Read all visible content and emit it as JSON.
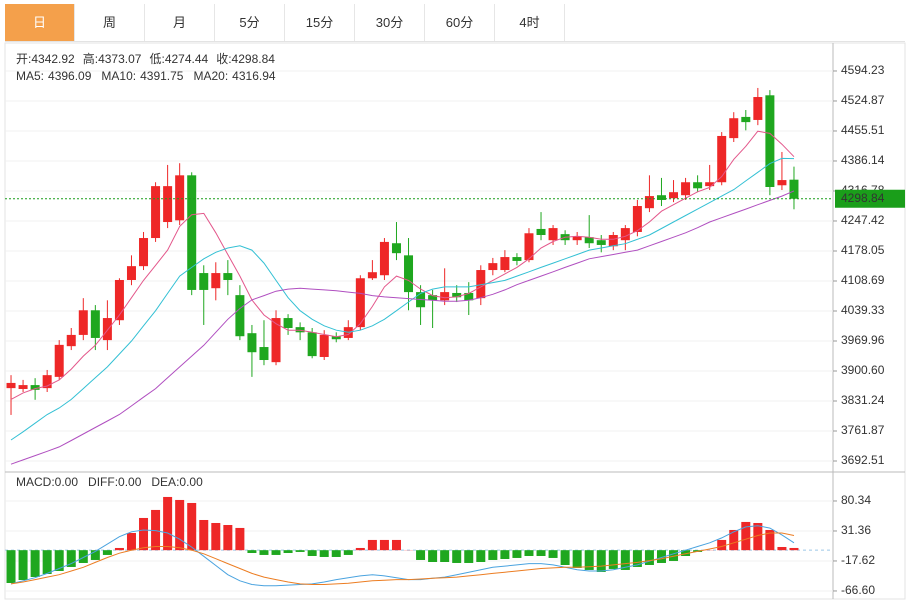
{
  "tabs": {
    "items": [
      "日",
      "周",
      "月",
      "5分",
      "15分",
      "30分",
      "60分",
      "4时"
    ],
    "selected": 0
  },
  "chart_data": [
    {
      "type": "candlestick",
      "open": [
        3861,
        3859,
        3868,
        3861,
        3887,
        3958,
        3984,
        4041,
        3972,
        4018,
        4111,
        4143,
        4208,
        4245,
        4249,
        4353,
        4127,
        4092,
        4127,
        4076,
        3988,
        3956,
        3921,
        4023,
        4002,
        3990,
        3933,
        3981,
        3977,
        4002,
        4115,
        4122,
        4196,
        4168,
        4083,
        4076,
        4064,
        4081,
        4081,
        4069,
        4134,
        4134,
        4164,
        4157,
        4229,
        4203,
        4217,
        4203,
        4210,
        4203,
        4189,
        4203,
        4222,
        4277,
        4307,
        4300,
        4307,
        4337,
        4328,
        4337,
        4439,
        4488,
        4481,
        4538,
        4330,
        4342.92
      ],
      "high": [
        3891,
        3880,
        3884,
        3903,
        3972,
        4000,
        4069,
        4053,
        4064,
        4115,
        4168,
        4222,
        4337,
        4377,
        4381,
        4360,
        4145,
        4152,
        4157,
        4099,
        4007,
        4018,
        4041,
        4032,
        4013,
        4000,
        3995,
        3990,
        4018,
        4122,
        4157,
        4208,
        4245,
        4208,
        4099,
        4088,
        4138,
        4099,
        4106,
        4145,
        4162,
        4180,
        4173,
        4231,
        4268,
        4238,
        4226,
        4222,
        4261,
        4215,
        4222,
        4238,
        4296,
        4353,
        4347,
        4342,
        4347,
        4353,
        4377,
        4453,
        4499,
        4504,
        4555,
        4550,
        4407,
        4373.07
      ],
      "low": [
        3799,
        3852,
        3834,
        3852,
        3880,
        3949,
        3972,
        3949,
        3949,
        4007,
        4099,
        4134,
        4199,
        4231,
        4238,
        4076,
        4007,
        4064,
        4076,
        3972,
        3887,
        3914,
        3914,
        3984,
        3972,
        3930,
        3926,
        3967,
        3972,
        3995,
        4111,
        4111,
        4157,
        4041,
        4007,
        4000,
        4053,
        4060,
        4030,
        4053,
        4122,
        4129,
        4145,
        4152,
        4203,
        4192,
        4192,
        4192,
        4185,
        4175,
        4180,
        4180,
        4212,
        4268,
        4282,
        4291,
        4296,
        4314,
        4319,
        4330,
        4430,
        4457,
        4469,
        4307,
        4319,
        4274.44
      ],
      "close": [
        3873,
        3868,
        3857,
        3891,
        3961,
        3984,
        4041,
        3977,
        4023,
        4111,
        4143,
        4208,
        4328,
        4328,
        4353,
        4088,
        4088,
        4127,
        4111,
        3981,
        3944,
        3926,
        4023,
        4000,
        3990,
        3935,
        3984,
        3974,
        4002,
        4115,
        4129,
        4199,
        4173,
        4083,
        4048,
        4064,
        4083,
        4071,
        4064,
        4134,
        4150,
        4164,
        4155,
        4219,
        4215,
        4231,
        4203,
        4212,
        4196,
        4192,
        4215,
        4231,
        4282,
        4305,
        4296,
        4314,
        4337,
        4323,
        4337,
        4444,
        4485,
        4476,
        4534,
        4326,
        4342,
        4298.84
      ],
      "up_color": "#ee2727",
      "down_color": "#1fa71f",
      "readout_color": "#1a9e1a",
      "ohlc_labels": [
        "开:",
        "高:",
        "低:",
        "收:"
      ],
      "lines": [
        {
          "name": "MA5:",
          "color": "#e3578b",
          "values": [
            3835,
            3850,
            3860,
            3866,
            3880,
            3905,
            3935,
            3960,
            3995,
            4030,
            4070,
            4110,
            4145,
            4180,
            4235,
            4262,
            4265,
            4220,
            4170,
            4120,
            4065,
            4030,
            4010,
            3995,
            3995,
            3990,
            3985,
            3980,
            3985,
            4010,
            4050,
            4095,
            4120,
            4110,
            4090,
            4075,
            4070,
            4072,
            4080,
            4095,
            4110,
            4125,
            4140,
            4160,
            4185,
            4200,
            4210,
            4212,
            4210,
            4205,
            4205,
            4212,
            4225,
            4245,
            4270,
            4285,
            4300,
            4315,
            4325,
            4350,
            4390,
            4420,
            4455,
            4450,
            4425,
            4396.09
          ]
        },
        {
          "name": "MA10:",
          "color": "#33c0d4",
          "values": [
            3741,
            3760,
            3780,
            3800,
            3815,
            3835,
            3860,
            3885,
            3910,
            3940,
            3970,
            4005,
            4040,
            4080,
            4120,
            4140,
            4160,
            4175,
            4185,
            4190,
            4180,
            4150,
            4110,
            4070,
            4040,
            4020,
            4005,
            3995,
            3990,
            3995,
            4005,
            4020,
            4040,
            4060,
            4080,
            4090,
            4095,
            4095,
            4095,
            4100,
            4105,
            4110,
            4120,
            4130,
            4140,
            4150,
            4160,
            4170,
            4180,
            4185,
            4190,
            4195,
            4205,
            4215,
            4230,
            4245,
            4260,
            4275,
            4290,
            4305,
            4320,
            4340,
            4360,
            4380,
            4392,
            4391.75
          ]
        },
        {
          "name": "MA20:",
          "color": "#b04fc0",
          "values": [
            3685,
            3695,
            3705,
            3715,
            3725,
            3740,
            3755,
            3770,
            3785,
            3800,
            3820,
            3840,
            3860,
            3885,
            3910,
            3935,
            3960,
            3990,
            4020,
            4045,
            4065,
            4075,
            4085,
            4090,
            4092,
            4090,
            4088,
            4086,
            4083,
            4080,
            4075,
            4072,
            4070,
            4068,
            4066,
            4064,
            4062,
            4062,
            4064,
            4070,
            4078,
            4088,
            4100,
            4110,
            4120,
            4130,
            4140,
            4150,
            4160,
            4165,
            4170,
            4175,
            4180,
            4190,
            4200,
            4210,
            4220,
            4232,
            4245,
            4255,
            4265,
            4275,
            4285,
            4295,
            4305,
            4316.94
          ]
        }
      ],
      "ylim": [
        3671.7,
        4656.6
      ],
      "yticks": [
        4594.23,
        4524.87,
        4455.51,
        4386.14,
        4316.78,
        4247.42,
        4178.05,
        4108.69,
        4039.33,
        3969.96,
        {
          "value": 3900.6,
          "label": "3900.60"
        },
        3831.24,
        3761.87,
        3692.51
      ],
      "grid": true
    },
    {
      "type": "macd",
      "series": [
        {
          "name": "MACD:",
          "type": "bar",
          "color": "#ee2727",
          "up_color": "#ee2727",
          "down_color": "#1fa71f",
          "readout": {
            "value": 0,
            "label": "0.00"
          },
          "values": [
            -53.6,
            -48.7,
            -43.8,
            -38.9,
            -34.0,
            -27.4,
            -20.9,
            -16.0,
            -7.8,
            3.6,
            28.1,
            52.6,
            65.7,
            86.9,
            82.0,
            77.1,
            49.3,
            44.4,
            41.1,
            36.3,
            -4.6,
            -7.8,
            -7.8,
            -4.6,
            -2.9,
            -9.5,
            -11.1,
            -11.1,
            -7.8,
            3.6,
            16.7,
            16.7,
            16.7,
            0.3,
            -16.0,
            -19.3,
            -19.3,
            -20.9,
            -20.9,
            -19.3,
            -16.0,
            -14.4,
            -12.7,
            -9.5,
            -9.5,
            -12.7,
            -24.2,
            -29.1,
            -32.3,
            -35.6,
            -30.7,
            -32.3,
            -27.4,
            -24.2,
            -20.9,
            -17.6,
            -9.5,
            -2.9,
            0.3,
            16.7,
            33.0,
            46.1,
            44.4,
            33.0,
            5.2,
            3.6
          ]
        },
        {
          "name": "DIFF:",
          "type": "line",
          "color": "#4aa3df",
          "readout": {
            "value": 0,
            "label": "0.00"
          },
          "values": [
            -55,
            -50,
            -45,
            -38,
            -30,
            -22,
            -12,
            -2,
            10,
            22,
            30,
            33,
            32,
            28,
            18,
            5,
            -10,
            -25,
            -40,
            -50,
            -56,
            -58,
            -58,
            -57,
            -56,
            -55,
            -52,
            -48,
            -45,
            -42,
            -40,
            -42,
            -45,
            -48,
            -48,
            -46,
            -44,
            -40,
            -36,
            -32,
            -28,
            -26,
            -24,
            -22,
            -22,
            -24,
            -28,
            -32,
            -34,
            -34,
            -32,
            -28,
            -24,
            -18,
            -12,
            -6,
            0,
            6,
            12,
            20,
            30,
            38,
            40,
            36,
            25,
            12
          ]
        },
        {
          "name": "DEA:",
          "type": "line",
          "color": "#ec7d22",
          "readout": {
            "value": 0,
            "label": "0.00"
          },
          "values": [
            -55,
            -52,
            -48,
            -44,
            -40,
            -34,
            -28,
            -20,
            -12,
            -5,
            0,
            4,
            6,
            6,
            4,
            0,
            -6,
            -14,
            -22,
            -30,
            -38,
            -44,
            -48,
            -52,
            -55,
            -56,
            -56,
            -55,
            -54,
            -52,
            -50,
            -49,
            -48,
            -48,
            -47,
            -46,
            -45,
            -44,
            -42,
            -40,
            -38,
            -36,
            -34,
            -32,
            -30,
            -29,
            -28,
            -28,
            -27,
            -26,
            -24,
            -22,
            -20,
            -17,
            -14,
            -10,
            -6,
            -2,
            2,
            6,
            12,
            18,
            24,
            28,
            28,
            24
          ]
        }
      ],
      "ylim": [
        -78.1,
        124.4
      ],
      "yticks": [
        80.34,
        31.36,
        -17.62,
        {
          "value": -66.6,
          "label": "-66.60"
        }
      ],
      "grid": true
    }
  ]
}
